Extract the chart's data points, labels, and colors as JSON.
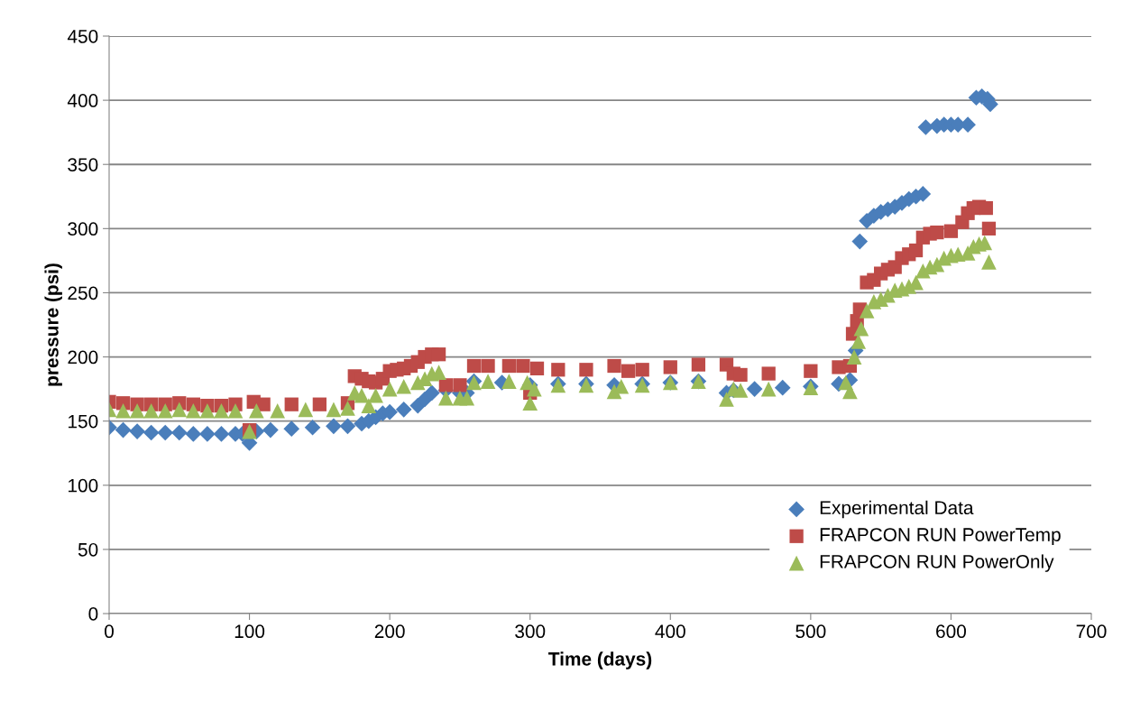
{
  "chart_data": {
    "type": "scatter",
    "xlabel": "Time (days)",
    "ylabel": "pressure (psi)",
    "xlim": [
      0,
      700
    ],
    "xticks": [
      0,
      100,
      200,
      300,
      400,
      500,
      600,
      700
    ],
    "ylim": [
      0,
      450
    ],
    "yticks": [
      0,
      50,
      100,
      150,
      200,
      250,
      300,
      350,
      400,
      450
    ],
    "grid": "y",
    "legend": "bottom right",
    "series": [
      {
        "name": "Experimental Data",
        "color": "#4a7ebb",
        "marker": "diamond",
        "x": [
          0,
          10,
          20,
          30,
          40,
          50,
          60,
          70,
          80,
          90,
          95,
          100,
          105,
          115,
          130,
          145,
          160,
          170,
          180,
          185,
          190,
          195,
          200,
          210,
          220,
          225,
          230,
          240,
          250,
          255,
          260,
          280,
          300,
          320,
          340,
          360,
          380,
          400,
          420,
          440,
          445,
          460,
          480,
          500,
          520,
          528,
          532,
          535,
          540,
          545,
          550,
          555,
          560,
          565,
          570,
          575,
          580,
          582,
          590,
          595,
          600,
          605,
          612,
          618,
          622,
          626,
          628
        ],
        "values": [
          145,
          143,
          142,
          141,
          141,
          141,
          140,
          140,
          140,
          140,
          140,
          133,
          142,
          143,
          144,
          145,
          146,
          146,
          148,
          150,
          153,
          156,
          157,
          159,
          162,
          167,
          172,
          174,
          172,
          172,
          181,
          180,
          178,
          179,
          179,
          178,
          179,
          180,
          181,
          172,
          174,
          175,
          176,
          177,
          179,
          182,
          205,
          290,
          306,
          310,
          313,
          315,
          317,
          320,
          323,
          325,
          327,
          379,
          380,
          381,
          381,
          381,
          381,
          402,
          403,
          401,
          397
        ]
      },
      {
        "name": "FRAPCON RUN PowerTemp",
        "color": "#be4b48",
        "marker": "square",
        "x": [
          0,
          10,
          20,
          30,
          40,
          50,
          60,
          70,
          80,
          90,
          100,
          103,
          110,
          130,
          150,
          170,
          175,
          180,
          185,
          190,
          195,
          200,
          205,
          210,
          215,
          220,
          225,
          230,
          235,
          240,
          250,
          260,
          270,
          285,
          295,
          300,
          305,
          320,
          340,
          360,
          370,
          380,
          400,
          420,
          440,
          445,
          450,
          470,
          500,
          520,
          528,
          530,
          533,
          535,
          540,
          545,
          550,
          555,
          560,
          565,
          570,
          575,
          580,
          585,
          590,
          600,
          608,
          612,
          616,
          620,
          625,
          627
        ],
        "values": [
          165,
          164,
          163,
          163,
          163,
          164,
          163,
          162,
          162,
          163,
          143,
          165,
          163,
          163,
          163,
          164,
          185,
          183,
          181,
          180,
          183,
          189,
          190,
          191,
          193,
          196,
          200,
          202,
          202,
          178,
          178,
          193,
          193,
          193,
          193,
          172,
          191,
          190,
          190,
          193,
          189,
          190,
          192,
          194,
          194,
          187,
          186,
          187,
          189,
          192,
          193,
          218,
          228,
          237,
          258,
          260,
          265,
          268,
          270,
          277,
          280,
          283,
          293,
          296,
          297,
          298,
          305,
          312,
          316,
          317,
          316,
          300
        ]
      },
      {
        "name": "FRAPCON RUN PowerOnly",
        "color": "#9bbb59",
        "marker": "triangle",
        "x": [
          0,
          10,
          20,
          30,
          40,
          50,
          60,
          70,
          80,
          90,
          100,
          105,
          120,
          140,
          160,
          170,
          175,
          180,
          185,
          190,
          200,
          210,
          220,
          225,
          230,
          235,
          240,
          250,
          255,
          260,
          270,
          285,
          298,
          300,
          303,
          320,
          340,
          360,
          365,
          380,
          400,
          420,
          440,
          445,
          450,
          470,
          500,
          525,
          528,
          531,
          534,
          536,
          540,
          545,
          550,
          555,
          560,
          565,
          570,
          575,
          580,
          585,
          590,
          595,
          600,
          605,
          612,
          616,
          620,
          624,
          627
        ],
        "values": [
          159,
          158,
          158,
          158,
          158,
          159,
          158,
          158,
          158,
          158,
          142,
          158,
          158,
          159,
          159,
          160,
          172,
          170,
          162,
          170,
          175,
          177,
          180,
          183,
          187,
          188,
          168,
          168,
          168,
          180,
          181,
          181,
          180,
          164,
          175,
          178,
          178,
          173,
          177,
          178,
          180,
          181,
          167,
          175,
          174,
          175,
          176,
          180,
          173,
          200,
          212,
          222,
          236,
          243,
          245,
          248,
          252,
          253,
          255,
          258,
          267,
          270,
          272,
          277,
          279,
          280,
          281,
          286,
          288,
          289,
          274
        ]
      }
    ]
  }
}
